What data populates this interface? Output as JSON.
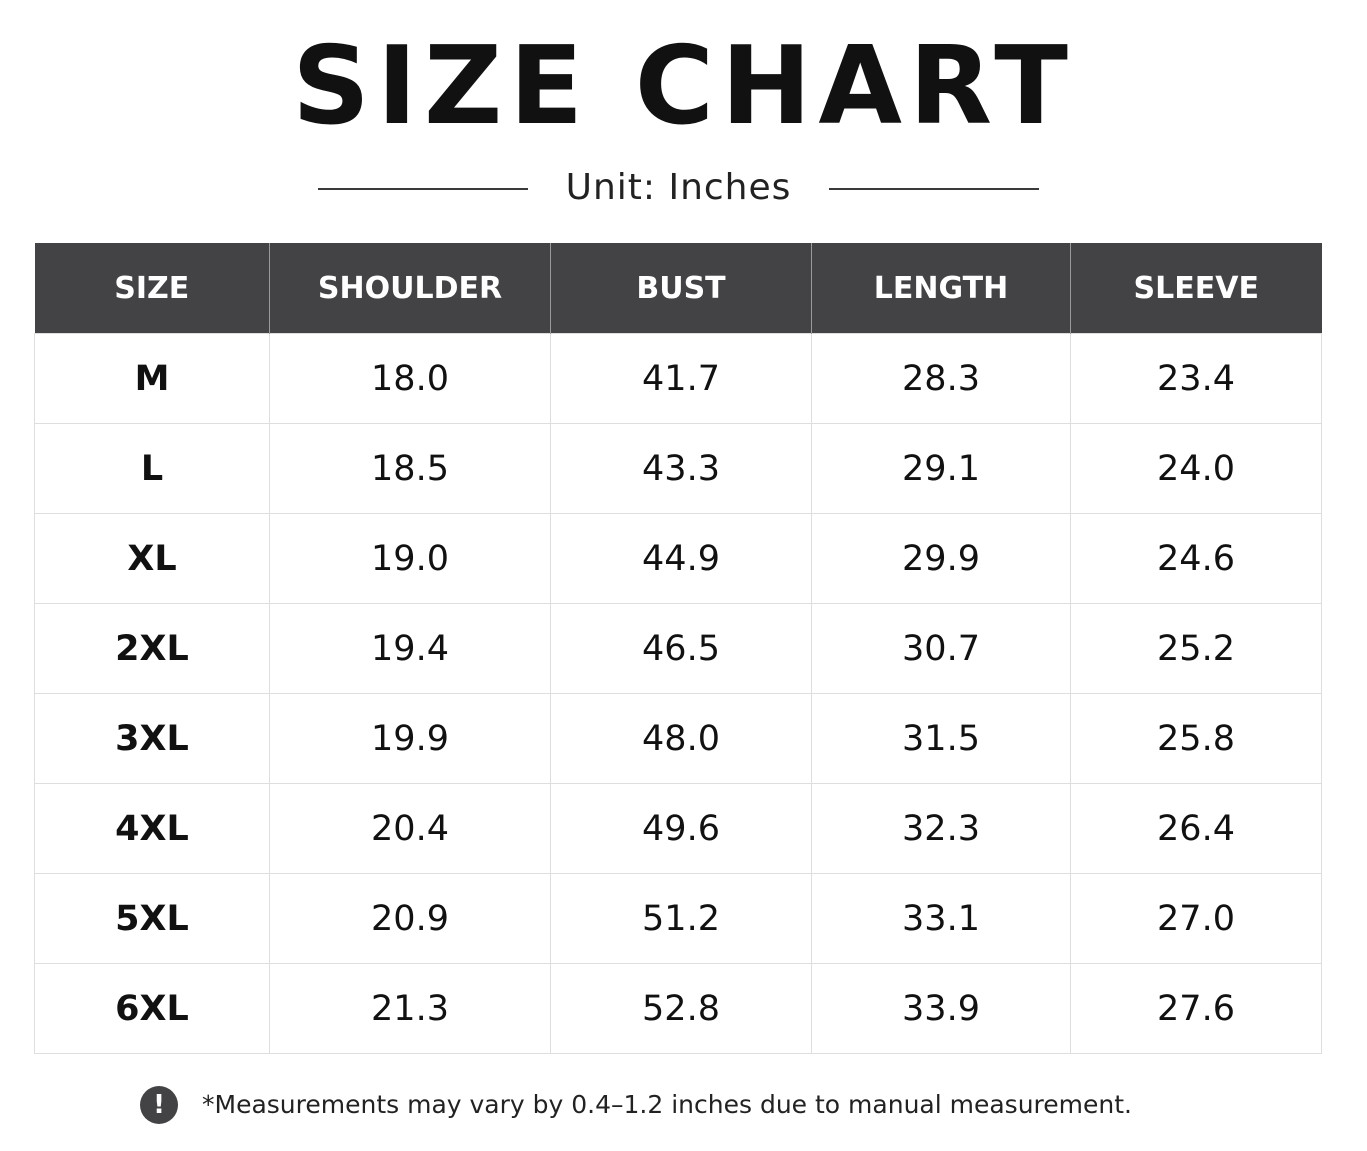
{
  "title": "SIZE CHART",
  "subtitle": "Unit: Inches",
  "note": {
    "icon": "exclamation-icon",
    "text": "*Measurements may vary by 0.4–1.2 inches due to manual measurement."
  },
  "colors": {
    "header_background": "#434346",
    "header_text": "#ffffff",
    "grid_lines": "#dedede",
    "text": "#111111"
  },
  "chart_data": {
    "type": "table",
    "title": "SIZE CHART",
    "subtitle": "Unit: Inches",
    "columns": [
      "SIZE",
      "SHOULDER",
      "BUST",
      "LENGTH",
      "SLEEVE"
    ],
    "rows": [
      [
        "M",
        "18.0",
        "41.7",
        "28.3",
        "23.4"
      ],
      [
        "L",
        "18.5",
        "43.3",
        "29.1",
        "24.0"
      ],
      [
        "XL",
        "19.0",
        "44.9",
        "29.9",
        "24.6"
      ],
      [
        "2XL",
        "19.4",
        "46.5",
        "30.7",
        "25.2"
      ],
      [
        "3XL",
        "19.9",
        "48.0",
        "31.5",
        "25.8"
      ],
      [
        "4XL",
        "20.4",
        "49.6",
        "32.3",
        "26.4"
      ],
      [
        "5XL",
        "20.9",
        "51.2",
        "33.1",
        "27.0"
      ],
      [
        "6XL",
        "21.3",
        "52.8",
        "33.9",
        "27.6"
      ]
    ]
  }
}
